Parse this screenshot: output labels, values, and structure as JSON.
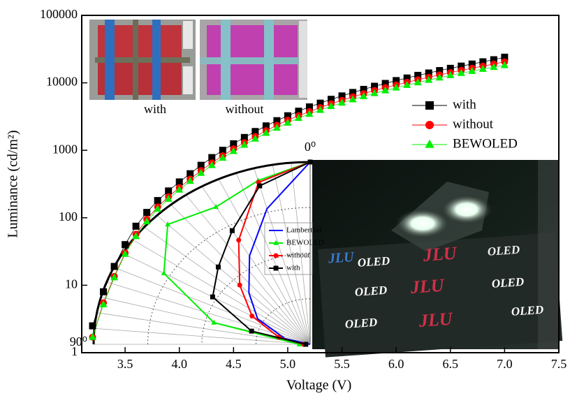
{
  "chart_data": [
    {
      "type": "scatter",
      "x_label": "Voltage (V)",
      "y_label": "Luminance (cd/m²)",
      "log_y": true,
      "xlim": [
        3.1,
        7.5
      ],
      "xticks": [
        3.5,
        {
          "value": 4,
          "label": "4.0"
        },
        4.5,
        {
          "value": 5,
          "label": "5.0"
        },
        5.5,
        {
          "value": 6,
          "label": "6.0"
        },
        6.5,
        {
          "value": 7,
          "label": "7.0"
        },
        7.5
      ],
      "ylim": [
        1,
        100000
      ],
      "yticks": [
        1,
        10,
        100,
        1000,
        10000,
        100000
      ],
      "legend": "upper right",
      "annotations": [
        "with",
        "without"
      ],
      "x": [
        3.2,
        3.3,
        3.4,
        3.5,
        3.6,
        3.7,
        3.8,
        3.9,
        4.0,
        4.1,
        4.2,
        4.3,
        4.4,
        4.5,
        4.6,
        4.7,
        4.8,
        4.9,
        5.0,
        5.1,
        5.2,
        5.3,
        5.4,
        5.5,
        5.6,
        5.7,
        5.8,
        5.9,
        6.0,
        6.1,
        6.2,
        6.3,
        6.4,
        6.5,
        6.6,
        6.7,
        6.8,
        6.9,
        7.0
      ],
      "series": [
        {
          "name": "with",
          "color": "#000000",
          "marker": "square",
          "values": [
            2.5,
            8,
            19,
            40,
            75,
            120,
            180,
            250,
            340,
            450,
            600,
            780,
            1000,
            1250,
            1550,
            1900,
            2300,
            2750,
            3250,
            3800,
            4400,
            5000,
            5700,
            6400,
            7200,
            8000,
            8900,
            9800,
            10800,
            11800,
            12900,
            14000,
            15200,
            16400,
            17700,
            19000,
            20500,
            22000,
            24000
          ]
        },
        {
          "name": "without",
          "color": "#ff0000",
          "marker": "circle",
          "values": [
            1.7,
            5.5,
            13.5,
            30,
            57,
            95,
            145,
            205,
            280,
            375,
            500,
            650,
            830,
            1050,
            1300,
            1600,
            1950,
            2350,
            2800,
            3250,
            3750,
            4300,
            4900,
            5500,
            6200,
            6900,
            7700,
            8500,
            9300,
            10200,
            11100,
            12100,
            13100,
            14200,
            15300,
            16500,
            17700,
            19000,
            20500
          ]
        },
        {
          "name": "BEWOLED",
          "color": "#00ee00",
          "marker": "triangle",
          "values": [
            1.7,
            5.2,
            13,
            29,
            53,
            88,
            135,
            190,
            260,
            350,
            460,
            600,
            770,
            970,
            1200,
            1480,
            1800,
            2150,
            2550,
            3000,
            3450,
            3950,
            4500,
            5050,
            5650,
            6300,
            7000,
            7700,
            8450,
            9250,
            10100,
            11000,
            11900,
            12900,
            13900,
            14900,
            16000,
            17100,
            18200
          ]
        }
      ]
    },
    {
      "type": "polar",
      "angle_labels": [
        {
          "value": 0,
          "label": "0⁰"
        },
        {
          "value": 90,
          "label": "90⁰"
        }
      ],
      "theta": [
        0,
        15,
        30,
        45,
        60,
        75,
        90
      ],
      "series": [
        {
          "name": "Lambertian",
          "color": "#0000ff",
          "marker": "none",
          "r": [
            1,
            0.77,
            0.56,
            0.4,
            0.28,
            0.12,
            0
          ]
        },
        {
          "name": "BEWOLED",
          "color": "#00ee00",
          "marker": "triangle",
          "r": [
            1,
            0.93,
            0.87,
            0.93,
            0.78,
            0.46,
            0.05
          ]
        },
        {
          "name": "without",
          "color": "#ff0000",
          "marker": "circle",
          "r": [
            1,
            0.92,
            0.66,
            0.46,
            0.31,
            0.15,
            0.03
          ]
        },
        {
          "name": "with",
          "color": "#000000",
          "marker": "square",
          "r": [
            1,
            0.9,
            0.72,
            0.6,
            0.52,
            0.28,
            0.02
          ]
        }
      ]
    }
  ],
  "photo": {
    "texts": [
      "JLU",
      "OLED",
      "JLU",
      "OLED",
      "OLED",
      "JLU",
      "OLED",
      "OLED",
      "JLU",
      "OLED"
    ]
  }
}
